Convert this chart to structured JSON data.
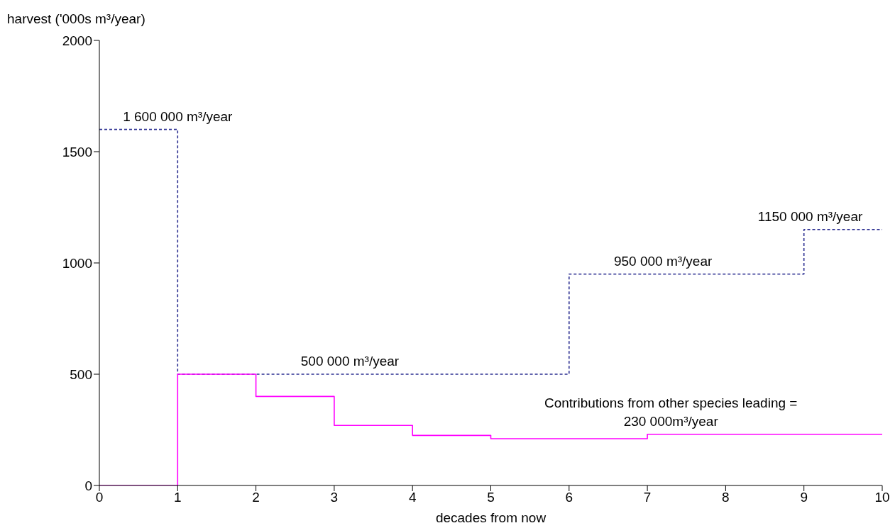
{
  "chart_data": {
    "type": "step",
    "xlabel": "decades from now",
    "ylabel": "harvest ('000s m³/year)",
    "x": [
      0,
      1,
      2,
      3,
      4,
      5,
      6,
      7,
      8,
      9,
      10
    ],
    "series": [
      {
        "color": "#2e3192",
        "line_style": "dashed",
        "values": [
          1600,
          500,
          500,
          500,
          500,
          500,
          950,
          950,
          950,
          1150,
          1150
        ]
      },
      {
        "color": "#ff00ff",
        "line_style": "solid",
        "values": [
          0,
          500,
          400,
          270,
          225,
          210,
          210,
          230,
          230,
          230,
          230
        ]
      }
    ],
    "xlim": [
      0,
      10
    ],
    "xticks": [
      0,
      1,
      2,
      3,
      4,
      5,
      6,
      7,
      8,
      9,
      10
    ],
    "ylim": [
      0,
      2000
    ],
    "yticks": [
      0,
      500,
      1000,
      1500,
      2000
    ],
    "grid": false,
    "legend": false,
    "marker": "none",
    "annotations": [
      {
        "text": "1 600 000 m³/year",
        "x": 1,
        "y": 1600
      },
      {
        "text": "500 000 m³/year",
        "x": 3.2,
        "y": 500
      },
      {
        "text": "950 000 m³/year",
        "x": 7.2,
        "y": 950
      },
      {
        "text": "1150 000 m³/year",
        "x": 9.08,
        "y": 1150
      },
      {
        "text": "Contributions from other species leading  =\n230 000m³/year",
        "x": 7.3,
        "y": 230
      }
    ]
  }
}
